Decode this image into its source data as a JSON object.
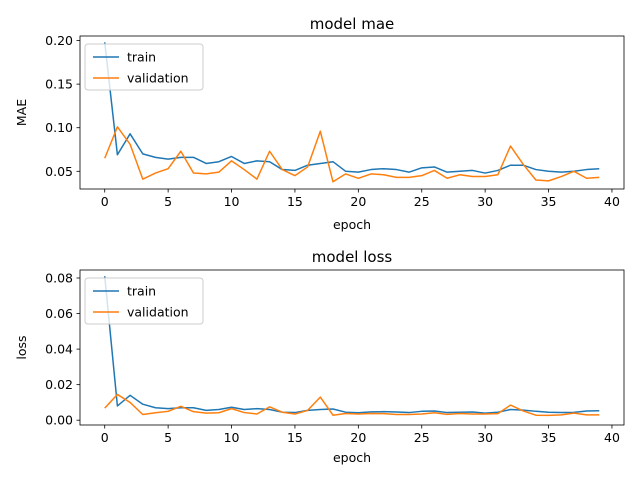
{
  "colors": {
    "train": "#1f77b4",
    "validation": "#ff7f0e"
  },
  "chart_data": [
    {
      "type": "line",
      "title": "model mae",
      "xlabel": "epoch",
      "ylabel": "MAE",
      "xlim": [
        -1.95,
        40.95
      ],
      "ylim": [
        0.0297,
        0.2052
      ],
      "xticks": [
        0,
        5,
        10,
        15,
        20,
        25,
        30,
        35,
        40
      ],
      "yticks": [
        0.05,
        0.1,
        0.15,
        0.2
      ],
      "ytick_labels": [
        "0.05",
        "0.10",
        "0.15",
        "0.20"
      ],
      "legend": "upper left",
      "x": [
        0,
        1,
        2,
        3,
        4,
        5,
        6,
        7,
        8,
        9,
        10,
        11,
        12,
        13,
        14,
        15,
        16,
        17,
        18,
        19,
        20,
        21,
        22,
        23,
        24,
        25,
        26,
        27,
        28,
        29,
        30,
        31,
        32,
        33,
        34,
        35,
        36,
        37,
        38,
        39
      ],
      "series": [
        {
          "name": "train",
          "color": "#1f77b4",
          "values": [
            0.198,
            0.069,
            0.093,
            0.07,
            0.066,
            0.064,
            0.066,
            0.066,
            0.059,
            0.061,
            0.067,
            0.059,
            0.062,
            0.061,
            0.052,
            0.051,
            0.057,
            0.059,
            0.061,
            0.05,
            0.049,
            0.052,
            0.053,
            0.052,
            0.049,
            0.054,
            0.055,
            0.049,
            0.05,
            0.051,
            0.048,
            0.051,
            0.057,
            0.057,
            0.052,
            0.05,
            0.049,
            0.05,
            0.052,
            0.053
          ]
        },
        {
          "name": "validation",
          "color": "#ff7f0e",
          "values": [
            0.065,
            0.101,
            0.081,
            0.041,
            0.048,
            0.053,
            0.073,
            0.048,
            0.047,
            0.049,
            0.062,
            0.052,
            0.041,
            0.073,
            0.052,
            0.045,
            0.055,
            0.096,
            0.038,
            0.047,
            0.042,
            0.047,
            0.046,
            0.043,
            0.043,
            0.045,
            0.051,
            0.042,
            0.046,
            0.044,
            0.044,
            0.046,
            0.079,
            0.058,
            0.04,
            0.039,
            0.044,
            0.05,
            0.042,
            0.043
          ]
        }
      ]
    },
    {
      "type": "line",
      "title": "model loss",
      "xlabel": "epoch",
      "ylabel": "loss",
      "xlim": [
        -1.95,
        40.95
      ],
      "ylim": [
        -0.0027,
        0.0845
      ],
      "xticks": [
        0,
        5,
        10,
        15,
        20,
        25,
        30,
        35,
        40
      ],
      "yticks": [
        0.0,
        0.02,
        0.04,
        0.06,
        0.08
      ],
      "ytick_labels": [
        "0.00",
        "0.02",
        "0.04",
        "0.06",
        "0.08"
      ],
      "legend": "upper left",
      "x": [
        0,
        1,
        2,
        3,
        4,
        5,
        6,
        7,
        8,
        9,
        10,
        11,
        12,
        13,
        14,
        15,
        16,
        17,
        18,
        19,
        20,
        21,
        22,
        23,
        24,
        25,
        26,
        27,
        28,
        29,
        30,
        31,
        32,
        33,
        34,
        35,
        36,
        37,
        38,
        39
      ],
      "series": [
        {
          "name": "train",
          "color": "#1f77b4",
          "values": [
            0.081,
            0.008,
            0.014,
            0.009,
            0.007,
            0.0065,
            0.007,
            0.007,
            0.0055,
            0.006,
            0.0073,
            0.006,
            0.0065,
            0.006,
            0.0045,
            0.0043,
            0.0055,
            0.006,
            0.0063,
            0.0045,
            0.0042,
            0.0047,
            0.0048,
            0.0046,
            0.0043,
            0.005,
            0.0052,
            0.0043,
            0.0045,
            0.0046,
            0.004,
            0.0045,
            0.006,
            0.0057,
            0.005,
            0.0045,
            0.0043,
            0.0044,
            0.0052,
            0.0053
          ]
        },
        {
          "name": "validation",
          "color": "#ff7f0e",
          "values": [
            0.0068,
            0.0145,
            0.01,
            0.0032,
            0.0042,
            0.005,
            0.0078,
            0.0048,
            0.004,
            0.0042,
            0.0065,
            0.0043,
            0.0035,
            0.0075,
            0.0045,
            0.0035,
            0.0055,
            0.013,
            0.0028,
            0.0038,
            0.0035,
            0.0038,
            0.0037,
            0.0032,
            0.0032,
            0.0035,
            0.0042,
            0.0033,
            0.0038,
            0.0035,
            0.0035,
            0.0037,
            0.0085,
            0.0052,
            0.0028,
            0.0027,
            0.003,
            0.004,
            0.003,
            0.003
          ]
        }
      ]
    }
  ]
}
